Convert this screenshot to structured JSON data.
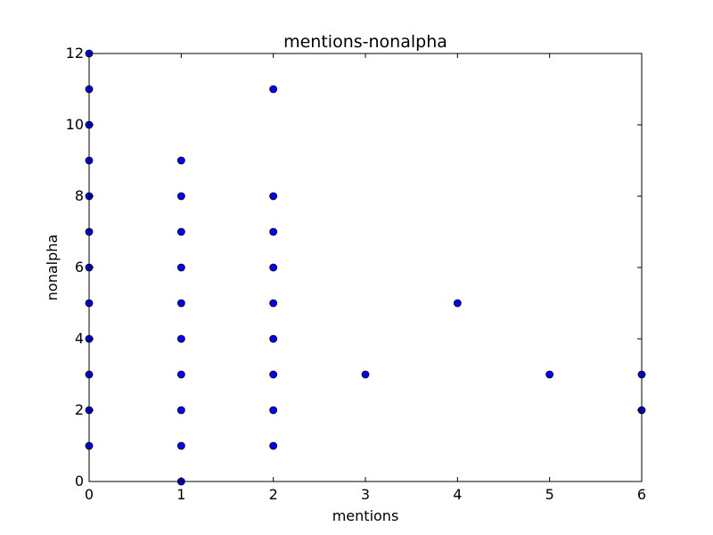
{
  "chart_data": {
    "type": "scatter",
    "title": "mentions-nonalpha",
    "xlabel": "mentions",
    "ylabel": "nonalpha",
    "xlim": [
      0,
      6
    ],
    "ylim": [
      0,
      12
    ],
    "xticks": [
      0,
      1,
      2,
      3,
      4,
      5,
      6
    ],
    "yticks": [
      0,
      2,
      4,
      6,
      8,
      10,
      12
    ],
    "grid": false,
    "marker_color": "#0000ff",
    "marker_edge_color": "#000000",
    "series": [
      {
        "points": [
          [
            0,
            12
          ],
          [
            0,
            11
          ],
          [
            0,
            10
          ],
          [
            0,
            9
          ],
          [
            0,
            8
          ],
          [
            0,
            7
          ],
          [
            0,
            6
          ],
          [
            0,
            5
          ],
          [
            0,
            4
          ],
          [
            0,
            3
          ],
          [
            0,
            2
          ],
          [
            0,
            1
          ],
          [
            1,
            9
          ],
          [
            1,
            8
          ],
          [
            1,
            7
          ],
          [
            1,
            6
          ],
          [
            1,
            5
          ],
          [
            1,
            4
          ],
          [
            1,
            3
          ],
          [
            1,
            2
          ],
          [
            1,
            1
          ],
          [
            1,
            0
          ],
          [
            2,
            11
          ],
          [
            2,
            8
          ],
          [
            2,
            7
          ],
          [
            2,
            6
          ],
          [
            2,
            5
          ],
          [
            2,
            4
          ],
          [
            2,
            3
          ],
          [
            2,
            2
          ],
          [
            2,
            1
          ],
          [
            3,
            3
          ],
          [
            4,
            5
          ],
          [
            5,
            3
          ],
          [
            6,
            3
          ],
          [
            6,
            2
          ]
        ]
      }
    ]
  }
}
